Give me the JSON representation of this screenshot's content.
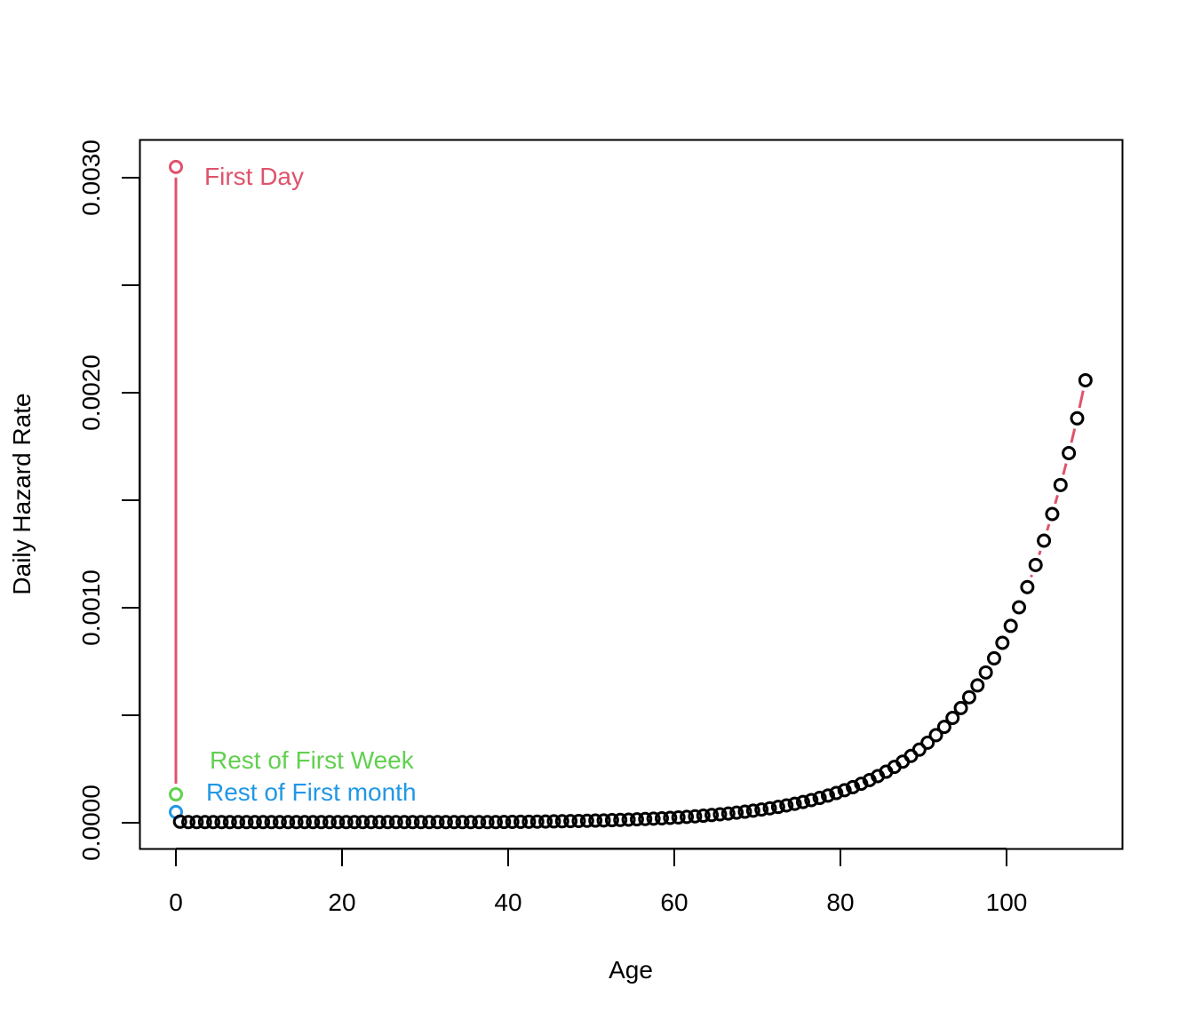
{
  "chart_data": {
    "type": "scatter",
    "title": "",
    "xlabel": "Age",
    "ylabel": "Daily Hazard Rate",
    "xlim": [
      -2.2,
      116
    ],
    "ylim": [
      -0.00012,
      0.00318
    ],
    "x_ticks": [
      "0",
      "20",
      "40",
      "60",
      "80",
      "100"
    ],
    "x_tick_values": [
      0,
      20,
      40,
      60,
      80,
      100
    ],
    "y_ticks": [
      "0.0000",
      "0.0010",
      "0.0020",
      "0.0030"
    ],
    "y_tick_values": [
      0,
      0.001,
      0.002,
      0.003
    ],
    "y_minor_tick_values": [
      0.0005,
      0.0015,
      0.0025
    ],
    "grid": false,
    "line_color": "#DF536B",
    "special_points": [
      {
        "name": "First Day",
        "x": 0,
        "y": 0.00305,
        "color": "#DF536B"
      },
      {
        "name": "Rest of First Week",
        "x": 0,
        "y": 0.000132,
        "color": "#61D04F"
      },
      {
        "name": "Rest of First month",
        "x": 0,
        "y": 5e-05,
        "color": "#2297E6"
      }
    ],
    "annotations": {
      "first_day": "First Day",
      "first_week": "Rest of First Week",
      "first_month": "Rest of First month"
    },
    "series": [
      {
        "name": "yearly ages",
        "color": "#000000",
        "x_start": 0.5,
        "x_step": 1,
        "values": [
          5e-06,
          3e-06,
          3e-06,
          3e-06,
          3e-06,
          3e-06,
          3e-06,
          3e-06,
          3e-06,
          3e-06,
          3e-06,
          3e-06,
          3e-06,
          3e-06,
          3e-06,
          3e-06,
          3e-06,
          3e-06,
          3e-06,
          3e-06,
          3e-06,
          3e-06,
          3e-06,
          3e-06,
          3e-06,
          3e-06,
          3e-06,
          3e-06,
          3e-06,
          3e-06,
          3e-06,
          3e-06,
          3e-06,
          3e-06,
          3e-06,
          3e-06,
          3e-06,
          3e-06,
          3e-06,
          3.8e-06,
          4.1e-06,
          4.5e-06,
          4.9e-06,
          5.4e-06,
          5.9e-06,
          6.5e-06,
          7.1e-06,
          7.8e-06,
          8.5e-06,
          9.3e-06,
          1.02e-05,
          1.11e-05,
          1.22e-05,
          1.33e-05,
          1.46e-05,
          1.6e-05,
          1.75e-05,
          1.91e-05,
          2.09e-05,
          2.29e-05,
          2.5e-05,
          2.74e-05,
          2.99e-05,
          3.28e-05,
          3.59e-05,
          3.92e-05,
          4.29e-05,
          4.7e-05,
          5.14e-05,
          5.62e-05,
          6.15e-05,
          6.73e-05,
          7.37e-05,
          8.06e-05,
          8.82e-05,
          9.65e-05,
          0.0001056,
          0.0001155,
          0.0001264,
          0.0001383,
          0.0001513,
          0.0001656,
          0.0001812,
          0.0001983,
          0.0002169,
          0.0002374,
          0.0002597,
          0.0002842,
          0.0003109,
          0.0003402,
          0.0003723,
          0.0004073,
          0.0004457,
          0.0004877,
          0.0005336,
          0.0005838,
          0.0006388,
          0.000699,
          0.0007648,
          0.0008368,
          0.0009156,
          0.001002,
          0.001096,
          0.001199,
          0.001312,
          0.001436,
          0.001571,
          0.001719,
          0.001881,
          0.002058
        ]
      }
    ]
  }
}
